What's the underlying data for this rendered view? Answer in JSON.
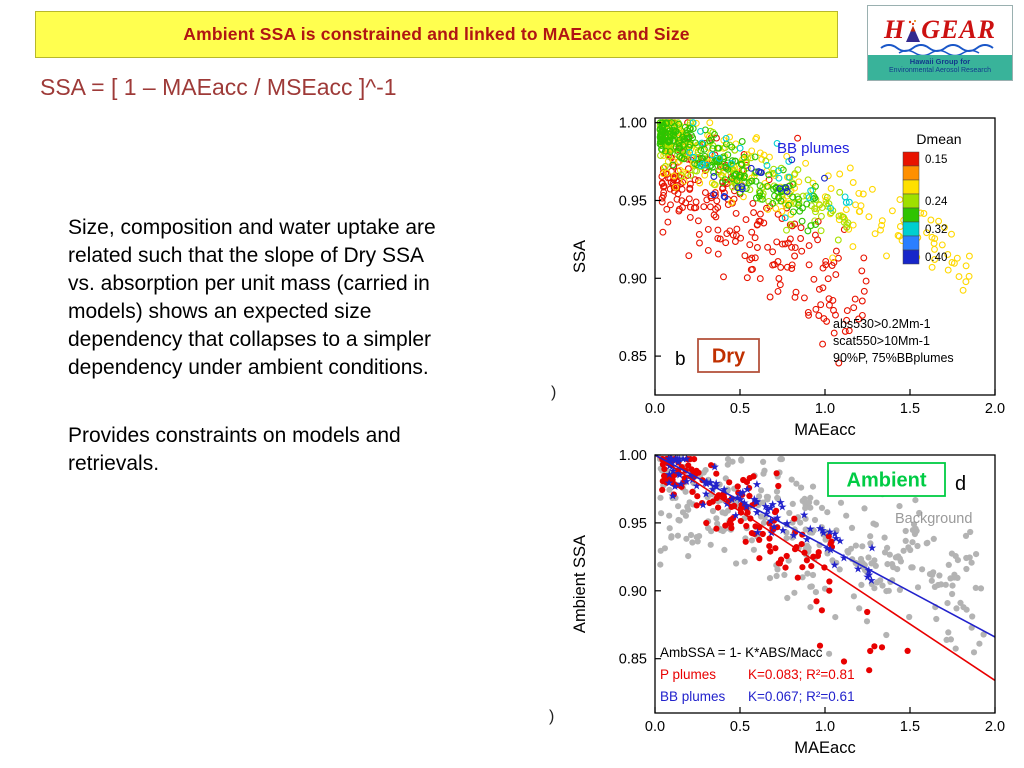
{
  "slide": {
    "title": "Ambient SSA is constrained and linked to MAEacc and Size",
    "formula": "SSA = [ 1 – MAEacc / MSEacc ]^-1",
    "body1_lines": [
      "Size, composition and water uptake are",
      "related such that the slope of Dry SSA",
      "vs. absorption per unit mass (carried in",
      "models) shows an expected size",
      "dependency that collapses to a simpler",
      "dependency under ambient conditions."
    ],
    "body2_lines": [
      "Provides constraints on models and",
      "retrievals."
    ],
    "stray_glyph_top": ")",
    "stray_glyph_bottom": ")",
    "colors": {
      "banner_bg": "#ffff4f",
      "title_text": "#b01513",
      "formula_text": "#9e3a38"
    }
  },
  "logo": {
    "word_h": "H",
    "word_gear": "GEAR",
    "subtitle_line1": "Hawaii Group for",
    "subtitle_line2": "Environmental Aerosol Research"
  },
  "chart_data": [
    {
      "id": "dry",
      "type": "scatter",
      "panel_label": "b",
      "condition_label": "Dry",
      "condition_box_color": "#b5533c",
      "condition_text_color": "#c03000",
      "xlabel": "MAEacc",
      "ylabel": "SSA",
      "xlim": [
        0.0,
        2.0
      ],
      "ylim": [
        0.825,
        1.003
      ],
      "xticks": [
        0.0,
        0.5,
        1.0,
        1.5,
        2.0
      ],
      "yticks": [
        0.85,
        0.9,
        0.95,
        1.0
      ],
      "grid": false,
      "inplot_label": {
        "text": "BB plumes",
        "color": "#2222dd"
      },
      "annotations": [
        {
          "text": "abs530>0.2Mm-1",
          "color": "#000000"
        },
        {
          "text": "scat550>10Mm-1",
          "color": "#000000"
        },
        {
          "text": "90%P, 75%BBplumes",
          "color": "#000000"
        }
      ],
      "legend": {
        "title": "Dmean",
        "position": "inside-top-right",
        "colors": [
          "#e81300",
          "#ff9000",
          "#ffe000",
          "#9fe000",
          "#2fc400",
          "#00cfd0",
          "#2a7fff",
          "#1726c9"
        ],
        "tick_labels": [
          "0.15",
          "0.24",
          "0.32",
          "0.40"
        ],
        "tick_cells": [
          0,
          3,
          5,
          7
        ]
      },
      "trend_note": "Dry SSA decreases with MAEacc; smaller Dmean (red) points lie lower with a steeper slope, larger Dmean (blue) flatter",
      "series": [
        {
          "name": "Dmean 0.15 (red)",
          "marker": "open-circle",
          "color": "#e81300",
          "n": 260,
          "x_range": [
            0.04,
            1.25
          ],
          "x_skew": 1.6,
          "intercept": 0.979,
          "slope": -0.08,
          "noise": 0.02
        },
        {
          "name": "Dmean 0.20 (yellow)",
          "marker": "open-circle",
          "color": "#ffd800",
          "n": 230,
          "x_range": [
            0.04,
            1.85
          ],
          "x_skew": 1.9,
          "intercept": 0.992,
          "slope": -0.042,
          "noise": 0.012
        },
        {
          "name": "Dmean 0.22 (yellow-green)",
          "marker": "open-circle",
          "color": "#a8e000",
          "n": 150,
          "x_range": [
            0.03,
            1.15
          ],
          "x_skew": 1.6,
          "intercept": 0.994,
          "slope": -0.05,
          "noise": 0.009
        },
        {
          "name": "Dmean 0.24 (green)",
          "marker": "open-circle",
          "color": "#2fc400",
          "n": 200,
          "x_range": [
            0.03,
            0.95
          ],
          "x_skew": 1.7,
          "intercept": 0.996,
          "slope": -0.055,
          "noise": 0.007
        },
        {
          "name": "Dmean 0.32 (cyan)",
          "marker": "open-circle",
          "color": "#00cfd0",
          "n": 26,
          "x_range": [
            0.2,
            1.15
          ],
          "x_skew": 1.2,
          "intercept": 0.988,
          "slope": -0.035,
          "noise": 0.011
        },
        {
          "name": "Dmean 0.40 (dark blue)",
          "marker": "open-circle",
          "color": "#1726c9",
          "n": 16,
          "x_range": [
            0.3,
            1.0
          ],
          "x_skew": 1.2,
          "intercept": 0.973,
          "slope": -0.018,
          "noise": 0.009
        }
      ]
    },
    {
      "id": "ambient",
      "type": "scatter",
      "panel_label": "d",
      "condition_label": "Ambient",
      "condition_box_color": "#00cc44",
      "condition_text_color": "#00cc44",
      "xlabel": "MAEacc",
      "ylabel": "Ambient SSA",
      "xlim": [
        0.0,
        2.0
      ],
      "ylim": [
        0.81,
        1.0
      ],
      "xticks": [
        0.0,
        0.5,
        1.0,
        1.5,
        2.0
      ],
      "yticks": [
        0.85,
        0.9,
        0.95,
        1.0
      ],
      "grid": false,
      "background_label": {
        "text": "Background",
        "color": "#9a9a9a"
      },
      "annotations": [
        {
          "text": "AmbSSA = 1- K*ABS/Macc",
          "color": "#000000"
        },
        {
          "label": "P plumes",
          "value": "K=0.083; R²=0.81",
          "color": "#e80000"
        },
        {
          "label": "BB plumes",
          "value": "K=0.067; R²=0.61",
          "color": "#2222cc"
        }
      ],
      "fits": [
        {
          "name": "P plumes",
          "K": 0.083,
          "R2": 0.81,
          "color": "#e80000"
        },
        {
          "name": "BB plumes",
          "K": 0.067,
          "R2": 0.61,
          "color": "#2222cc"
        }
      ],
      "trend_note": "Ambient SSA = 1 - K*MAEacc; red P-plume points follow steeper red fit, blue BB-plume stars follow shallower blue fit, gray background scatter broader",
      "series": [
        {
          "name": "Background (gray)",
          "marker": "circle",
          "color": "#b3b3b3",
          "n": 330,
          "x_range": [
            0.03,
            1.95
          ],
          "x_skew": 1.35,
          "intercept": 0.986,
          "slope": -0.047,
          "noise": 0.026
        },
        {
          "name": "P plumes (red)",
          "marker": "circle",
          "color": "#e80000",
          "n": 140,
          "x_range": [
            0.04,
            1.05
          ],
          "x_skew": 1.4,
          "intercept": 1.0,
          "slope": -0.083,
          "noise": 0.013
        },
        {
          "name": "P plumes outliers",
          "marker": "circle",
          "color": "#e80000",
          "n": 9,
          "x_range": [
            0.85,
            1.9
          ],
          "x_skew": 1.5,
          "intercept": 0.898,
          "slope": -0.028,
          "noise": 0.016
        },
        {
          "name": "BB plumes (stars)",
          "marker": "star",
          "color": "#2222cc",
          "n": 88,
          "x_range": [
            0.08,
            1.3
          ],
          "x_skew": 1.7,
          "intercept": 1.0,
          "slope": -0.067,
          "noise": 0.009
        }
      ]
    }
  ]
}
